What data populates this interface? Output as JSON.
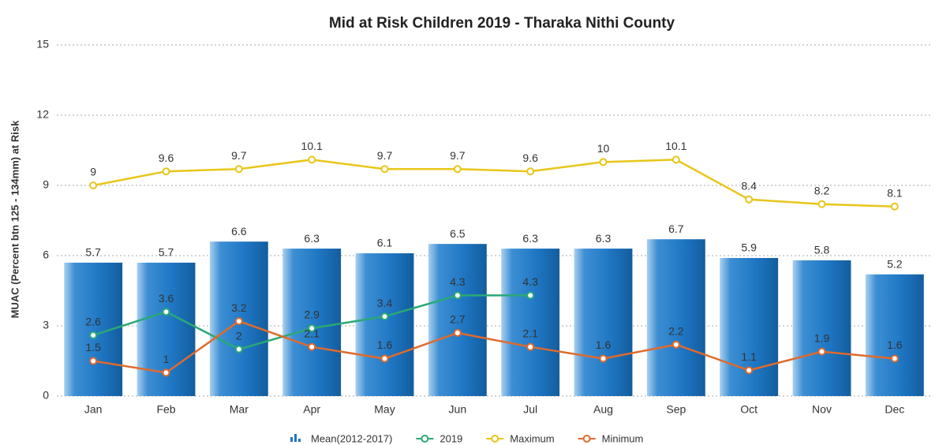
{
  "chart_data": {
    "type": "bar",
    "title": "Mid at Risk Children 2019 - Tharaka Nithi County",
    "y_label": "MUAC (Percent btn 125 - 134mm) at Risk",
    "categories": [
      "Jan",
      "Feb",
      "Mar",
      "Apr",
      "May",
      "Jun",
      "Jul",
      "Aug",
      "Sep",
      "Oct",
      "Nov",
      "Dec"
    ],
    "series": [
      {
        "name": "Mean(2012-2017)",
        "type": "bar",
        "color": "#1f77c4",
        "values": [
          5.7,
          5.7,
          6.6,
          6.3,
          6.1,
          6.5,
          6.3,
          6.3,
          6.7,
          5.9,
          5.8,
          5.2
        ]
      },
      {
        "name": "2019",
        "type": "line",
        "color": "#2aa876",
        "values": [
          2.6,
          3.6,
          2,
          2.9,
          3.4,
          4.3,
          4.3,
          null,
          null,
          null,
          null,
          null
        ]
      },
      {
        "name": "Maximum",
        "type": "line",
        "color": "#e8c619",
        "values": [
          9,
          9.6,
          9.7,
          10.1,
          9.7,
          9.7,
          9.6,
          10,
          10.1,
          8.4,
          8.2,
          8.1
        ]
      },
      {
        "name": "Minimum",
        "type": "line",
        "color": "#e06a2c",
        "values": [
          1.5,
          1,
          3.2,
          2.1,
          1.6,
          2.7,
          2.1,
          1.6,
          2.2,
          1.1,
          1.9,
          1.6
        ]
      }
    ],
    "ylim": [
      0,
      15
    ],
    "yticks": [
      0,
      3,
      6,
      9,
      12,
      15
    ],
    "grid": true,
    "legend": "bottom"
  }
}
